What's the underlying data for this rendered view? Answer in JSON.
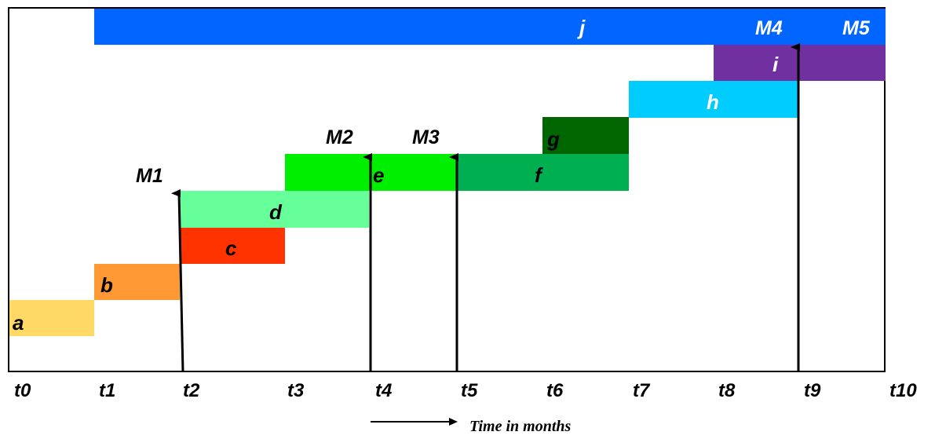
{
  "diagram": {
    "axis_caption": "Time in months",
    "ticks": [
      "t0",
      "t1",
      "t2",
      "t3",
      "t4",
      "t5",
      "t6",
      "t7",
      "t8",
      "t9",
      "t10"
    ],
    "bars": [
      {
        "id": "a",
        "label": "a",
        "start": 0,
        "end": 1,
        "color": "#FFD966",
        "label_color": "#000000"
      },
      {
        "id": "b",
        "label": "b",
        "start": 1,
        "end": 2,
        "color": "#FF9933",
        "label_color": "#000000"
      },
      {
        "id": "c",
        "label": "c",
        "start": 2,
        "end": 3.2,
        "color": "#FF3300",
        "label_color": "#000000"
      },
      {
        "id": "d",
        "label": "d",
        "start": 2,
        "end": 4.2,
        "color": "#66FF99",
        "label_color": "#000000"
      },
      {
        "id": "e",
        "label": "e",
        "start": 3.2,
        "end": 5,
        "color": "#00EE00",
        "label_color": "#000000"
      },
      {
        "id": "f",
        "label": "f",
        "start": 5,
        "end": 7.2,
        "color": "#00B050",
        "label_color": "#000000"
      },
      {
        "id": "g",
        "label": "g",
        "start": 6.2,
        "end": 7.2,
        "color": "#006600",
        "label_color": "#000000"
      },
      {
        "id": "h",
        "label": "h",
        "start": 7.2,
        "end": 9.2,
        "color": "#00CCFF",
        "label_color": "#ffffff"
      },
      {
        "id": "i",
        "label": "i",
        "start": 8.2,
        "end": 10.2,
        "color": "#7030A0",
        "label_color": "#ffffff"
      },
      {
        "id": "j",
        "label": "j",
        "start": 1,
        "end": 10.2,
        "color": "#0066FF",
        "label_color": "#ffffff"
      }
    ],
    "milestones": [
      {
        "id": "M1",
        "label": "M1",
        "label_color": "#000000"
      },
      {
        "id": "M2",
        "label": "M2",
        "label_color": "#000000"
      },
      {
        "id": "M3",
        "label": "M3",
        "label_color": "#000000"
      },
      {
        "id": "M4",
        "label": "M4",
        "label_color": "#ffffff"
      },
      {
        "id": "M5",
        "label": "M5",
        "label_color": "#ffffff"
      }
    ]
  }
}
